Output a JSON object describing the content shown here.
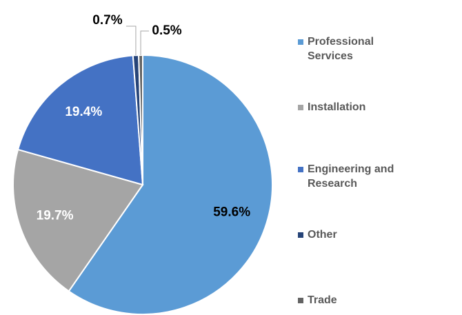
{
  "chart_data": {
    "type": "pie",
    "categories": [
      "Professional Services",
      "Installation",
      "Engineering and Research",
      "Other",
      "Trade"
    ],
    "values": [
      59.6,
      19.7,
      19.4,
      0.7,
      0.5
    ],
    "value_labels": [
      "59.6%",
      "19.7%",
      "19.4%",
      "0.7%",
      "0.5%"
    ],
    "colors": [
      "#5b9bd5",
      "#a5a5a5",
      "#4472c4",
      "#264478",
      "#636363"
    ],
    "label_colors": [
      "#000000",
      "#ffffff",
      "#ffffff",
      "#000000",
      "#000000"
    ],
    "legend": "right"
  }
}
